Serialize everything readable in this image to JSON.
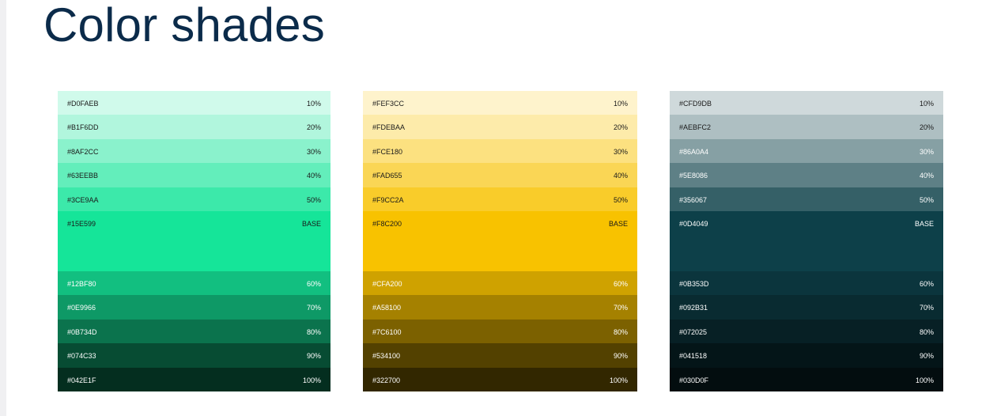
{
  "title": "Color shades",
  "palettes": [
    {
      "shades": [
        {
          "hex": "#D0FAEB",
          "label": "10%",
          "color": "#D0FAEB",
          "text_color": "#1a1a1a"
        },
        {
          "hex": "#B1F6DD",
          "label": "20%",
          "color": "#B1F6DD",
          "text_color": "#1a1a1a"
        },
        {
          "hex": "#8AF2CC",
          "label": "30%",
          "color": "#8AF2CC",
          "text_color": "#1a1a1a"
        },
        {
          "hex": "#63EEBB",
          "label": "40%",
          "color": "#63EEBB",
          "text_color": "#1a1a1a"
        },
        {
          "hex": "#3CE9AA",
          "label": "50%",
          "color": "#3CE9AA",
          "text_color": "#1a1a1a"
        },
        {
          "hex": "#15E599",
          "label": "BASE",
          "color": "#15E599",
          "text_color": "#1a1a1a",
          "is_base": true
        },
        {
          "hex": "#12BF80",
          "label": "60%",
          "color": "#12BF80",
          "text_color": "#ffffff"
        },
        {
          "hex": "#0E9966",
          "label": "70%",
          "color": "#0E9966",
          "text_color": "#ffffff"
        },
        {
          "hex": "#0B734D",
          "label": "80%",
          "color": "#0B734D",
          "text_color": "#ffffff"
        },
        {
          "hex": "#074C33",
          "label": "90%",
          "color": "#074C33",
          "text_color": "#ffffff"
        },
        {
          "hex": "#042E1F",
          "label": "100%",
          "color": "#042E1F",
          "text_color": "#ffffff"
        }
      ]
    },
    {
      "shades": [
        {
          "hex": "#FEF3CC",
          "label": "10%",
          "color": "#FEF3CC",
          "text_color": "#1a1a1a"
        },
        {
          "hex": "#FDEBAA",
          "label": "20%",
          "color": "#FDEBAA",
          "text_color": "#1a1a1a"
        },
        {
          "hex": "#FCE180",
          "label": "30%",
          "color": "#FCE180",
          "text_color": "#1a1a1a"
        },
        {
          "hex": "#FAD655",
          "label": "40%",
          "color": "#FAD655",
          "text_color": "#1a1a1a"
        },
        {
          "hex": "#F9CC2A",
          "label": "50%",
          "color": "#F9CC2A",
          "text_color": "#1a1a1a"
        },
        {
          "hex": "#F8C200",
          "label": "BASE",
          "color": "#F8C200",
          "text_color": "#1a1a1a",
          "is_base": true
        },
        {
          "hex": "#CFA200",
          "label": "60%",
          "color": "#CFA200",
          "text_color": "#ffffff"
        },
        {
          "hex": "#A58100",
          "label": "70%",
          "color": "#A58100",
          "text_color": "#ffffff"
        },
        {
          "hex": "#7C6100",
          "label": "80%",
          "color": "#7C6100",
          "text_color": "#ffffff"
        },
        {
          "hex": "#534100",
          "label": "90%",
          "color": "#534100",
          "text_color": "#ffffff"
        },
        {
          "hex": "#322700",
          "label": "100%",
          "color": "#322700",
          "text_color": "#ffffff"
        }
      ]
    },
    {
      "shades": [
        {
          "hex": "#CFD9DB",
          "label": "10%",
          "color": "#CFD9DB",
          "text_color": "#1a1a1a"
        },
        {
          "hex": "#AEBFC2",
          "label": "20%",
          "color": "#AEBFC2",
          "text_color": "#1a1a1a"
        },
        {
          "hex": "#86A0A4",
          "label": "30%",
          "color": "#86A0A4",
          "text_color": "#ffffff"
        },
        {
          "hex": "#5E8086",
          "label": "40%",
          "color": "#5E8086",
          "text_color": "#ffffff"
        },
        {
          "hex": "#356067",
          "label": "50%",
          "color": "#356067",
          "text_color": "#ffffff"
        },
        {
          "hex": "#0D4049",
          "label": "BASE",
          "color": "#0D4049",
          "text_color": "#ffffff",
          "is_base": true
        },
        {
          "hex": "#0B353D",
          "label": "60%",
          "color": "#0B353D",
          "text_color": "#ffffff"
        },
        {
          "hex": "#092B31",
          "label": "70%",
          "color": "#092B31",
          "text_color": "#ffffff"
        },
        {
          "hex": "#072025",
          "label": "80%",
          "color": "#072025",
          "text_color": "#ffffff"
        },
        {
          "hex": "#041518",
          "label": "90%",
          "color": "#041518",
          "text_color": "#ffffff"
        },
        {
          "hex": "#030D0F",
          "label": "100%",
          "color": "#030D0F",
          "text_color": "#ffffff"
        }
      ]
    }
  ]
}
